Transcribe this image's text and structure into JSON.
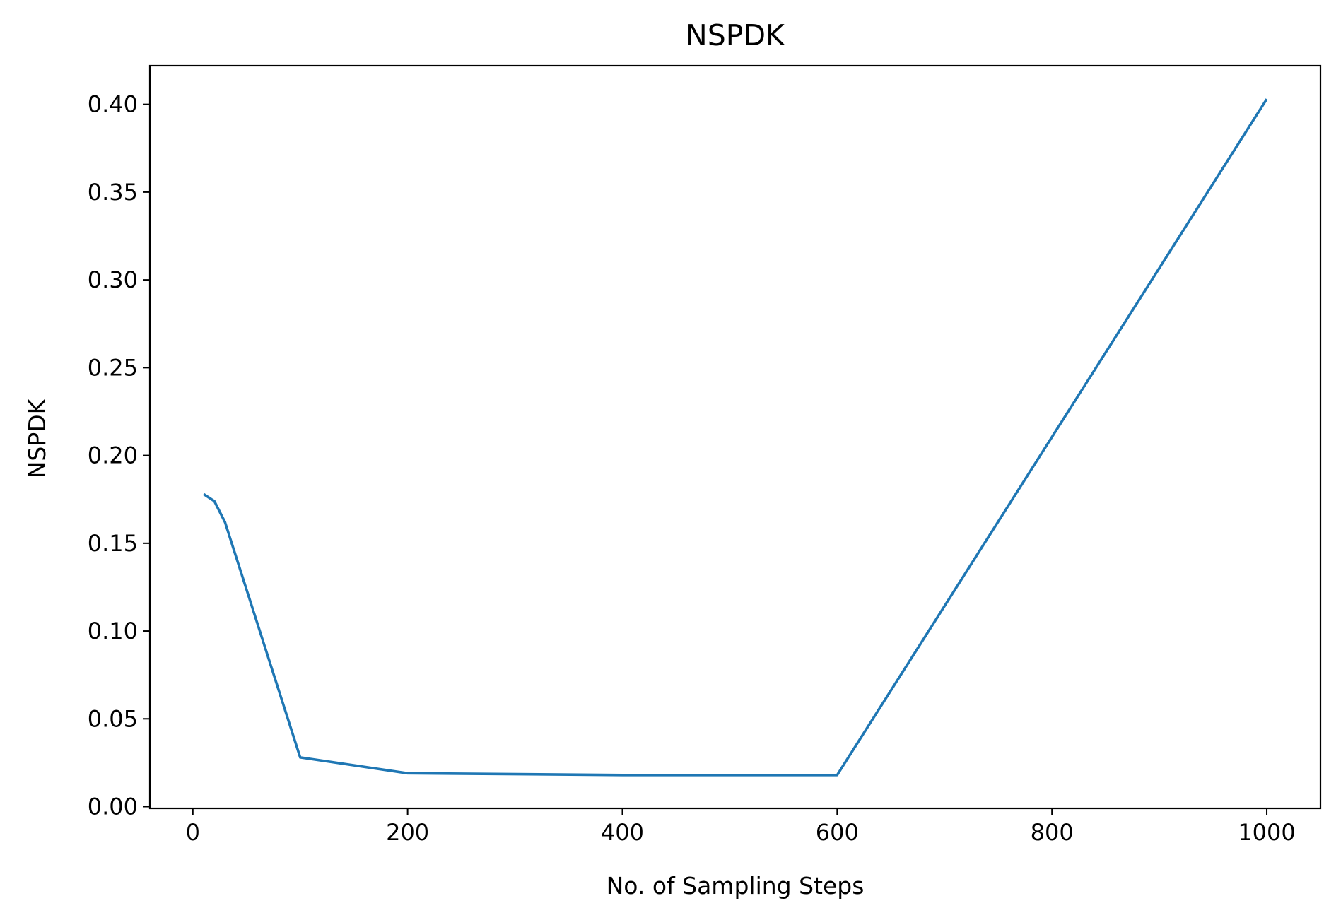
{
  "chart_data": {
    "type": "line",
    "title": "NSPDK",
    "xlabel": "No. of Sampling Steps",
    "ylabel": "NSPDK",
    "xlim": [
      -40,
      1050
    ],
    "ylim": [
      -0.001,
      0.422
    ],
    "xticks": [
      0,
      200,
      400,
      600,
      800,
      1000
    ],
    "xtick_labels": [
      "0",
      "200",
      "400",
      "600",
      "800",
      "1000"
    ],
    "yticks": [
      0.0,
      0.05,
      0.1,
      0.15,
      0.2,
      0.25,
      0.3,
      0.35,
      0.4
    ],
    "ytick_labels": [
      "0.00",
      "0.05",
      "0.10",
      "0.15",
      "0.20",
      "0.25",
      "0.30",
      "0.35",
      "0.40"
    ],
    "grid": false,
    "series": [
      {
        "color": "#1f77b4",
        "x": [
          10,
          20,
          30,
          100,
          200,
          400,
          600,
          1000
        ],
        "y": [
          0.178,
          0.174,
          0.162,
          0.028,
          0.019,
          0.018,
          0.018,
          0.403
        ]
      }
    ]
  }
}
